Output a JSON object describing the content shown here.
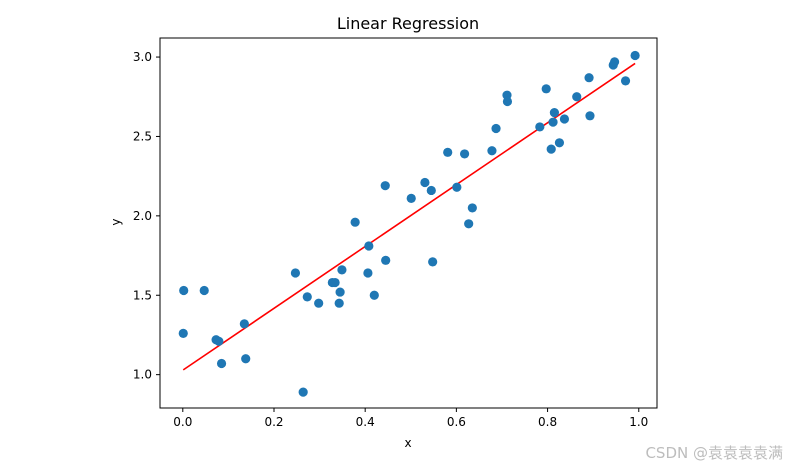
{
  "chart_data": {
    "type": "scatter",
    "title": "Linear Regression",
    "xlabel": "x",
    "ylabel": "y",
    "xlim": [
      -0.05,
      1.04
    ],
    "ylim": [
      0.79,
      3.12
    ],
    "xticks": [
      "0.0",
      "0.2",
      "0.4",
      "0.6",
      "0.8",
      "1.0"
    ],
    "yticks": [
      "1.0",
      "1.5",
      "2.0",
      "2.5",
      "3.0"
    ],
    "grid": false,
    "colors": {
      "points": "#1f77b4",
      "line": "#ff0000"
    },
    "points": {
      "x": [
        0.001,
        0.002,
        0.047,
        0.073,
        0.079,
        0.085,
        0.135,
        0.138,
        0.247,
        0.264,
        0.273,
        0.298,
        0.328,
        0.334,
        0.343,
        0.345,
        0.349,
        0.378,
        0.406,
        0.408,
        0.42,
        0.444,
        0.445,
        0.501,
        0.531,
        0.545,
        0.548,
        0.581,
        0.601,
        0.618,
        0.627,
        0.635,
        0.678,
        0.687,
        0.711,
        0.712,
        0.783,
        0.797,
        0.808,
        0.812,
        0.815,
        0.826,
        0.837,
        0.864,
        0.891,
        0.893,
        0.944,
        0.947,
        0.971,
        0.992
      ],
      "y": [
        1.26,
        1.53,
        1.53,
        1.22,
        1.21,
        1.07,
        1.32,
        1.1,
        1.64,
        0.89,
        1.49,
        1.45,
        1.58,
        1.58,
        1.45,
        1.52,
        1.66,
        1.96,
        1.64,
        1.81,
        1.5,
        2.19,
        1.72,
        2.11,
        2.21,
        2.16,
        1.71,
        2.4,
        2.18,
        2.39,
        1.95,
        2.05,
        2.41,
        2.55,
        2.76,
        2.72,
        2.56,
        2.8,
        2.42,
        2.59,
        2.65,
        2.46,
        2.61,
        2.75,
        2.87,
        2.63,
        2.95,
        2.97,
        2.85,
        3.01
      ]
    },
    "fit_line": {
      "x": [
        0.001,
        0.992
      ],
      "y": [
        1.03,
        2.96
      ]
    }
  },
  "watermark": "CSDN @袁袁袁袁满"
}
